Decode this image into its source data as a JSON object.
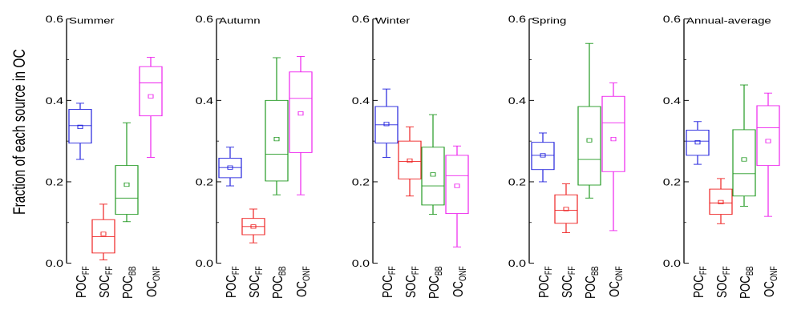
{
  "ylabel": "Fraction of each source in OC",
  "category_keys": [
    {
      "main": "POC",
      "sub": "FF"
    },
    {
      "main": "SOC",
      "sub": "FF"
    },
    {
      "main": "POC",
      "sub": "BB"
    },
    {
      "main": "OC",
      "sub": "ONF"
    }
  ],
  "colors": [
    "#2222dd",
    "#ee2222",
    "#229922",
    "#ee22ee"
  ],
  "chart_data": [
    {
      "type": "box",
      "title": "Summer",
      "categories": [
        "POC_FF",
        "SOC_FF",
        "POC_BB",
        "OC_ONF"
      ],
      "ylim": [
        0,
        0.6
      ],
      "yticks": [
        0.0,
        0.2,
        0.4,
        0.6
      ],
      "series": [
        {
          "category": "POC_FF",
          "whisker_low": 0.255,
          "q1": 0.295,
          "median": 0.338,
          "q3": 0.378,
          "whisker_high": 0.393,
          "mean": 0.335
        },
        {
          "category": "SOC_FF",
          "whisker_low": 0.008,
          "q1": 0.025,
          "median": 0.065,
          "q3": 0.107,
          "whisker_high": 0.145,
          "mean": 0.072
        },
        {
          "category": "POC_BB",
          "whisker_low": 0.102,
          "q1": 0.12,
          "median": 0.16,
          "q3": 0.24,
          "whisker_high": 0.345,
          "mean": 0.193
        },
        {
          "category": "OC_ONF",
          "whisker_low": 0.26,
          "q1": 0.362,
          "median": 0.443,
          "q3": 0.483,
          "whisker_high": 0.506,
          "mean": 0.41
        }
      ]
    },
    {
      "type": "box",
      "title": "Autumn",
      "categories": [
        "POC_FF",
        "SOC_FF",
        "POC_BB",
        "OC_ONF"
      ],
      "ylim": [
        0,
        0.6
      ],
      "yticks": [
        0.0,
        0.2,
        0.4,
        0.6
      ],
      "series": [
        {
          "category": "POC_FF",
          "whisker_low": 0.19,
          "q1": 0.21,
          "median": 0.235,
          "q3": 0.258,
          "whisker_high": 0.285,
          "mean": 0.235
        },
        {
          "category": "SOC_FF",
          "whisker_low": 0.05,
          "q1": 0.07,
          "median": 0.09,
          "q3": 0.11,
          "whisker_high": 0.133,
          "mean": 0.09
        },
        {
          "category": "POC_BB",
          "whisker_low": 0.168,
          "q1": 0.202,
          "median": 0.268,
          "q3": 0.4,
          "whisker_high": 0.505,
          "mean": 0.305
        },
        {
          "category": "OC_ONF",
          "whisker_low": 0.168,
          "q1": 0.272,
          "median": 0.405,
          "q3": 0.47,
          "whisker_high": 0.508,
          "mean": 0.368
        }
      ]
    },
    {
      "type": "box",
      "title": "Winter",
      "categories": [
        "POC_FF",
        "SOC_FF",
        "POC_BB",
        "OC_ONF"
      ],
      "ylim": [
        0,
        0.6
      ],
      "yticks": [
        0.0,
        0.2,
        0.4,
        0.6
      ],
      "series": [
        {
          "category": "POC_FF",
          "whisker_low": 0.26,
          "q1": 0.295,
          "median": 0.34,
          "q3": 0.385,
          "whisker_high": 0.428,
          "mean": 0.342
        },
        {
          "category": "SOC_FF",
          "whisker_low": 0.165,
          "q1": 0.207,
          "median": 0.25,
          "q3": 0.3,
          "whisker_high": 0.335,
          "mean": 0.252
        },
        {
          "category": "POC_BB",
          "whisker_low": 0.12,
          "q1": 0.143,
          "median": 0.19,
          "q3": 0.285,
          "whisker_high": 0.365,
          "mean": 0.218
        },
        {
          "category": "OC_ONF",
          "whisker_low": 0.04,
          "q1": 0.122,
          "median": 0.215,
          "q3": 0.265,
          "whisker_high": 0.288,
          "mean": 0.19
        }
      ]
    },
    {
      "type": "box",
      "title": "Spring",
      "categories": [
        "POC_FF",
        "SOC_FF",
        "POC_BB",
        "OC_ONF"
      ],
      "ylim": [
        0,
        0.6
      ],
      "yticks": [
        0.0,
        0.2,
        0.4,
        0.6
      ],
      "series": [
        {
          "category": "POC_FF",
          "whisker_low": 0.2,
          "q1": 0.23,
          "median": 0.265,
          "q3": 0.297,
          "whisker_high": 0.32,
          "mean": 0.265
        },
        {
          "category": "SOC_FF",
          "whisker_low": 0.075,
          "q1": 0.098,
          "median": 0.13,
          "q3": 0.168,
          "whisker_high": 0.195,
          "mean": 0.133
        },
        {
          "category": "POC_BB",
          "whisker_low": 0.16,
          "q1": 0.192,
          "median": 0.255,
          "q3": 0.385,
          "whisker_high": 0.54,
          "mean": 0.302
        },
        {
          "category": "OC_ONF",
          "whisker_low": 0.08,
          "q1": 0.225,
          "median": 0.345,
          "q3": 0.41,
          "whisker_high": 0.443,
          "mean": 0.305
        }
      ]
    },
    {
      "type": "box",
      "title": "Annual-average",
      "categories": [
        "POC_FF",
        "SOC_FF",
        "POC_BB",
        "OC_ONF"
      ],
      "ylim": [
        0,
        0.6
      ],
      "yticks": [
        0.0,
        0.2,
        0.4,
        0.6
      ],
      "series": [
        {
          "category": "POC_FF",
          "whisker_low": 0.243,
          "q1": 0.265,
          "median": 0.3,
          "q3": 0.327,
          "whisker_high": 0.348,
          "mean": 0.297
        },
        {
          "category": "SOC_FF",
          "whisker_low": 0.097,
          "q1": 0.12,
          "median": 0.148,
          "q3": 0.182,
          "whisker_high": 0.208,
          "mean": 0.15
        },
        {
          "category": "POC_BB",
          "whisker_low": 0.14,
          "q1": 0.165,
          "median": 0.22,
          "q3": 0.328,
          "whisker_high": 0.438,
          "mean": 0.255
        },
        {
          "category": "OC_ONF",
          "whisker_low": 0.115,
          "q1": 0.24,
          "median": 0.333,
          "q3": 0.387,
          "whisker_high": 0.418,
          "mean": 0.3
        }
      ]
    }
  ]
}
